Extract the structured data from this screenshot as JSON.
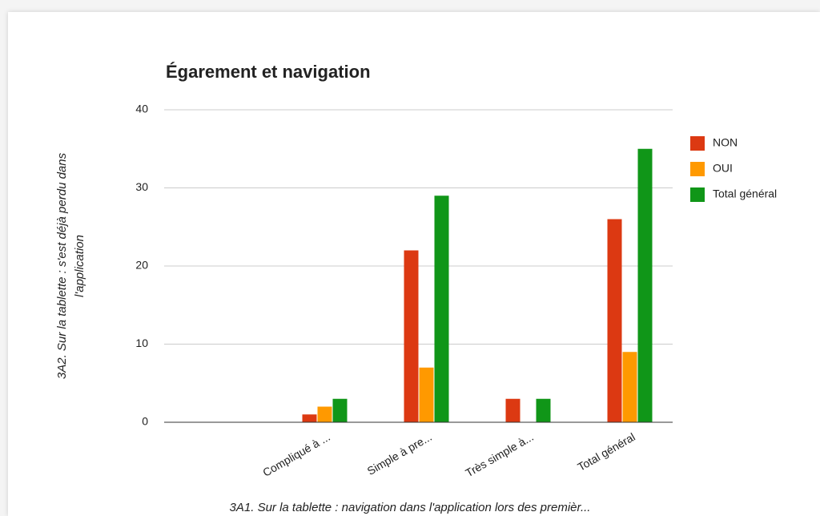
{
  "chart_data": {
    "type": "bar",
    "title": "Égarement et navigation",
    "y_label": [
      "3A2. Sur la tablette : s'est déjà perdu dans",
      "l'application"
    ],
    "x_label": "3A1. Sur la tablette : navigation dans l'application lors des premièr...",
    "categories": [
      null,
      "Compliqué à ...",
      "Simple à pre...",
      "Très simple à...",
      "Total général"
    ],
    "series": [
      {
        "name": "NON",
        "color": "#dc3912",
        "values": [
          null,
          1,
          22,
          3,
          26
        ]
      },
      {
        "name": "OUI",
        "color": "#ff9900",
        "values": [
          null,
          2,
          7,
          0,
          9
        ]
      },
      {
        "name": "Total général",
        "color": "#109618",
        "values": [
          null,
          3,
          29,
          3,
          35
        ]
      }
    ],
    "ylim": [
      0,
      40
    ],
    "yticks": [
      0,
      10,
      20,
      30,
      40
    ],
    "grid": true,
    "legend": "right"
  }
}
